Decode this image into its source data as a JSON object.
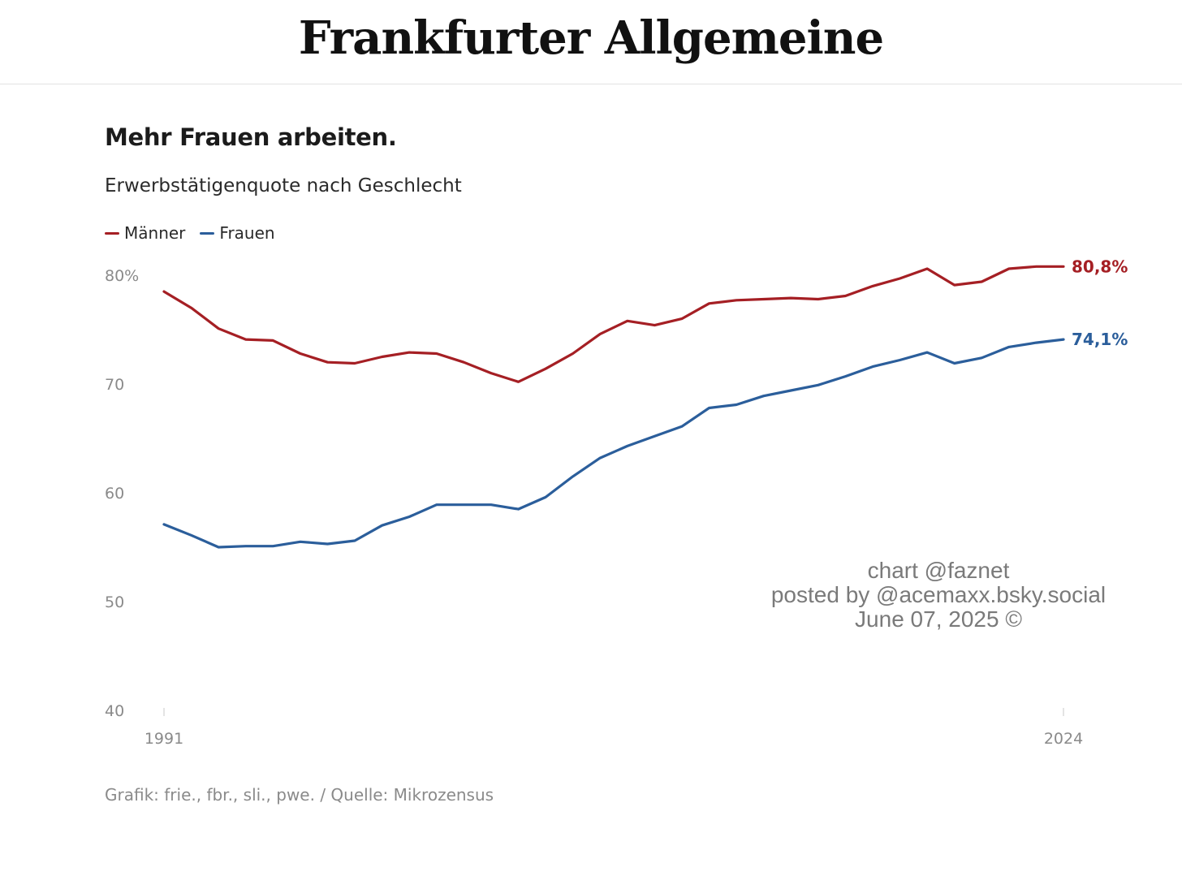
{
  "masthead": {
    "logo_text": "Frankfurter Allgemeine"
  },
  "chart_data": {
    "type": "line",
    "title": "Mehr Frauen arbeiten.",
    "subtitle": "Erwerbstätigenquote nach Geschlecht",
    "x": [
      1991,
      1992,
      1993,
      1994,
      1995,
      1996,
      1997,
      1998,
      1999,
      2000,
      2001,
      2002,
      2003,
      2004,
      2005,
      2006,
      2007,
      2008,
      2009,
      2010,
      2011,
      2012,
      2013,
      2014,
      2015,
      2016,
      2017,
      2018,
      2019,
      2020,
      2021,
      2022,
      2023,
      2024
    ],
    "series": [
      {
        "name": "Männer",
        "color": "#a51f24",
        "values": [
          78.5,
          77.0,
          75.1,
          74.1,
          74.0,
          72.8,
          72.0,
          71.9,
          72.5,
          72.9,
          72.8,
          72.0,
          71.0,
          70.2,
          71.4,
          72.8,
          74.6,
          75.8,
          75.4,
          76.0,
          77.4,
          77.7,
          77.8,
          77.9,
          77.8,
          78.1,
          79.0,
          79.7,
          80.6,
          79.1,
          79.4,
          80.6,
          80.8,
          80.8
        ],
        "end_label": "80,8%"
      },
      {
        "name": "Frauen",
        "color": "#2b5e9b",
        "values": [
          57.1,
          56.1,
          55.0,
          55.1,
          55.1,
          55.5,
          55.3,
          55.6,
          57.0,
          57.8,
          58.9,
          58.9,
          58.9,
          58.5,
          59.6,
          61.5,
          63.2,
          64.3,
          65.2,
          66.1,
          67.8,
          68.1,
          68.9,
          69.4,
          69.9,
          70.7,
          71.6,
          72.2,
          72.9,
          71.9,
          72.4,
          73.4,
          73.8,
          74.1
        ],
        "end_label": "74,1%"
      }
    ],
    "ylim": [
      40,
      80
    ],
    "yticks": [
      40,
      50,
      60,
      70,
      80
    ],
    "ytick_labels": [
      "40",
      "50",
      "60",
      "70",
      "80%"
    ],
    "xticks": [
      1991,
      2024
    ],
    "xtick_labels": [
      "1991",
      "2024"
    ],
    "grid": false,
    "legend_position": "top-left",
    "source": "Grafik: frie., fbr., sli., pwe. / Quelle: Mikrozensus"
  },
  "watermark": {
    "line1": "chart @faznet",
    "line2": "posted by @acemaxx.bsky.social",
    "line3": "June 07, 2025 ©"
  }
}
